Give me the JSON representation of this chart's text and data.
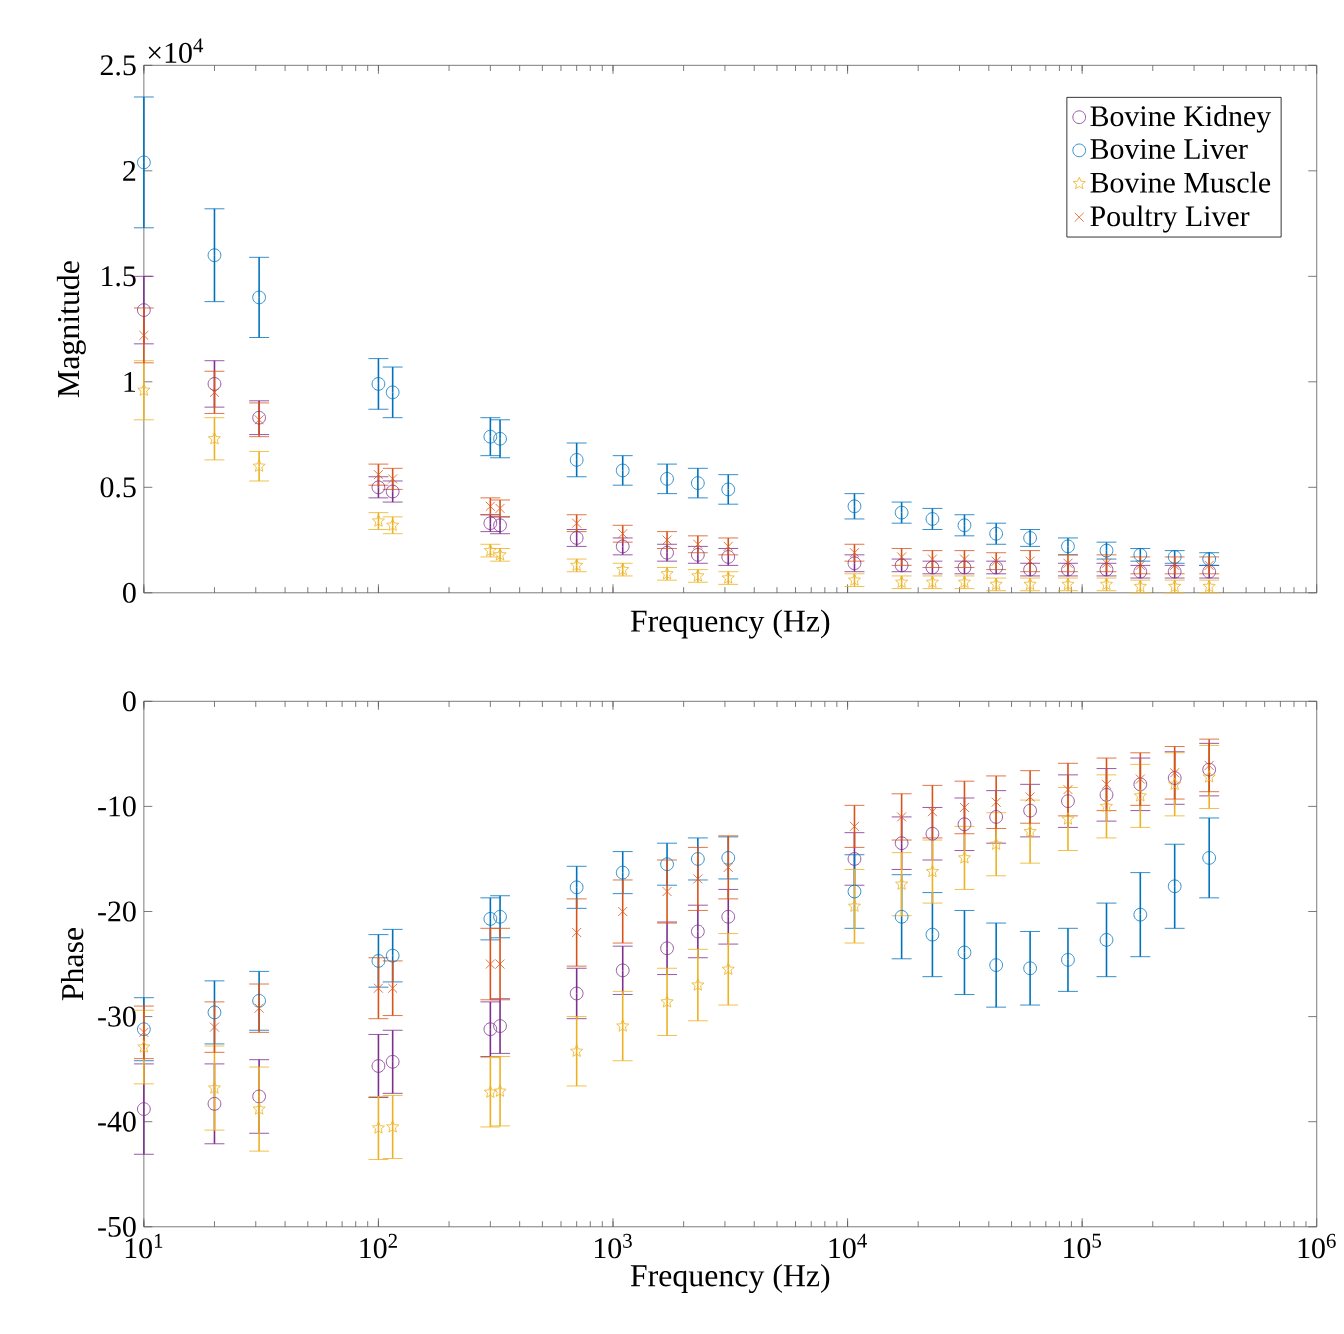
{
  "chart_data": [
    {
      "type": "scatter",
      "xlabel": "Frequency (Hz)",
      "ylabel": "Magnitude",
      "log": "x",
      "legend": "top right",
      "tick_labels": "y",
      "annotations": [
        "×10$^{4}$"
      ],
      "xlim": [
        10,
        1000000
      ],
      "xticks": [
        10,
        100,
        1000,
        10000,
        100000,
        1000000
      ],
      "ylim": [
        0,
        2.5
      ],
      "yticks": [
        0,
        0.5,
        1,
        1.5,
        2,
        2.5
      ],
      "x": [
        10,
        20,
        31,
        100,
        115,
        300,
        330,
        700,
        1100,
        1700,
        2300,
        3100,
        10700,
        17000,
        23000,
        31500,
        43000,
        60000,
        87000,
        127000,
        177000,
        248000,
        348000
      ],
      "series": [
        {
          "name": "Bovine Kidney",
          "color": "#7e2f8e",
          "marker": "circle",
          "values": [
            1.34,
            0.99,
            0.83,
            0.5,
            0.48,
            0.33,
            0.32,
            0.26,
            0.22,
            0.19,
            0.18,
            0.17,
            0.14,
            0.13,
            0.12,
            0.12,
            0.12,
            0.11,
            0.11,
            0.11,
            0.1,
            0.1,
            0.1
          ],
          "errors": [
            0.16,
            0.11,
            0.08,
            0.05,
            0.05,
            0.04,
            0.04,
            0.04,
            0.04,
            0.04,
            0.04,
            0.04,
            0.04,
            0.03,
            0.03,
            0.03,
            0.03,
            0.03,
            0.03,
            0.03,
            0.03,
            0.03,
            0.03
          ]
        },
        {
          "name": "Bovine Liver",
          "color": "#0072bd",
          "marker": "circle",
          "values": [
            2.04,
            1.6,
            1.4,
            0.99,
            0.95,
            0.74,
            0.73,
            0.63,
            0.58,
            0.54,
            0.52,
            0.49,
            0.41,
            0.38,
            0.35,
            0.32,
            0.28,
            0.26,
            0.22,
            0.2,
            0.18,
            0.17,
            0.16
          ],
          "errors": [
            0.31,
            0.22,
            0.19,
            0.12,
            0.12,
            0.09,
            0.09,
            0.08,
            0.07,
            0.07,
            0.07,
            0.07,
            0.06,
            0.05,
            0.05,
            0.05,
            0.05,
            0.04,
            0.04,
            0.04,
            0.03,
            0.03,
            0.03
          ]
        },
        {
          "name": "Bovine Muscle",
          "color": "#edb120",
          "marker": "star",
          "values": [
            0.96,
            0.73,
            0.6,
            0.34,
            0.32,
            0.2,
            0.18,
            0.13,
            0.11,
            0.09,
            0.08,
            0.07,
            0.06,
            0.05,
            0.05,
            0.05,
            0.04,
            0.04,
            0.04,
            0.04,
            0.03,
            0.03,
            0.03
          ],
          "errors": [
            0.14,
            0.1,
            0.07,
            0.04,
            0.04,
            0.03,
            0.03,
            0.03,
            0.03,
            0.03,
            0.03,
            0.03,
            0.03,
            0.03,
            0.03,
            0.03,
            0.03,
            0.03,
            0.03,
            0.03,
            0.03,
            0.03,
            0.03
          ]
        },
        {
          "name": "Poultry Liver",
          "color": "#d95319",
          "marker": "cross",
          "values": [
            1.22,
            0.95,
            0.82,
            0.56,
            0.54,
            0.41,
            0.4,
            0.33,
            0.28,
            0.25,
            0.23,
            0.22,
            0.19,
            0.17,
            0.16,
            0.16,
            0.15,
            0.15,
            0.14,
            0.14,
            0.13,
            0.13,
            0.13
          ],
          "errors": [
            0.13,
            0.1,
            0.08,
            0.05,
            0.05,
            0.04,
            0.04,
            0.04,
            0.04,
            0.04,
            0.04,
            0.04,
            0.04,
            0.04,
            0.04,
            0.04,
            0.04,
            0.05,
            0.04,
            0.04,
            0.04,
            0.04,
            0.04
          ]
        }
      ]
    },
    {
      "type": "scatter",
      "xlabel": "Frequency (Hz)",
      "ylabel": "Phase",
      "log": "x",
      "xlim": [
        10,
        1000000
      ],
      "xticks": [
        {
          "value": 10,
          "label": "10$^{1}$"
        },
        {
          "value": 100,
          "label": "10$^{2}$"
        },
        {
          "value": 1000,
          "label": "10$^{3}$"
        },
        {
          "value": 10000,
          "label": "10$^{4}$"
        },
        {
          "value": 100000,
          "label": "10$^{5}$"
        },
        {
          "value": 1000000,
          "label": "10$^{6}$"
        }
      ],
      "ylim": [
        -50,
        0
      ],
      "yticks": [
        -50,
        -40,
        -30,
        -20,
        -10,
        0
      ],
      "x": [
        10,
        20,
        31,
        100,
        115,
        300,
        330,
        700,
        1100,
        1700,
        2300,
        3100,
        10700,
        17000,
        23000,
        31500,
        43000,
        60000,
        87000,
        127000,
        177000,
        248000,
        348000
      ],
      "series": [
        {
          "color": "#7e2f8e",
          "marker": "circle",
          "values": [
            -38.8,
            -38.3,
            -37.6,
            -34.7,
            -34.3,
            -31.2,
            -30.9,
            -27.8,
            -25.6,
            -23.5,
            -21.9,
            -20.5,
            -15.0,
            -13.5,
            -12.6,
            -11.7,
            -11.0,
            -10.4,
            -9.5,
            -8.9,
            -7.9,
            -7.3,
            -6.5
          ],
          "errors": [
            4.3,
            3.8,
            3.5,
            3,
            3,
            2.6,
            2.6,
            2.4,
            2.3,
            2.5,
            2.5,
            2.6,
            2.5,
            2.5,
            2.5,
            2.5,
            2.5,
            2.5,
            2.5,
            2.5,
            2.5,
            2.5,
            2.5
          ]
        },
        {
          "color": "#0072bd",
          "marker": "circle",
          "values": [
            -31.2,
            -29.6,
            -28.5,
            -24.7,
            -24.2,
            -20.7,
            -20.5,
            -17.7,
            -16.3,
            -15.5,
            -15.0,
            -14.9,
            -18.1,
            -20.5,
            -22.2,
            -23.9,
            -25.1,
            -25.4,
            -24.6,
            -22.7,
            -20.3,
            -17.6,
            -14.9
          ],
          "errors": [
            3,
            3,
            2.8,
            2.5,
            2.5,
            2,
            2,
            2,
            2,
            2,
            2,
            2,
            3.5,
            4,
            4,
            4,
            4,
            3.5,
            3,
            3.5,
            4,
            4,
            3.8
          ]
        },
        {
          "color": "#edb120",
          "marker": "star",
          "values": [
            -32.9,
            -36.8,
            -38.8,
            -40.6,
            -40.5,
            -37.2,
            -37.1,
            -33.3,
            -30.9,
            -28.6,
            -27.0,
            -25.5,
            -19.5,
            -17.4,
            -16.2,
            -14.9,
            -13.6,
            -12.4,
            -11.2,
            -10.0,
            -9.0,
            -7.9,
            -7.2
          ],
          "errors": [
            3.5,
            4,
            4,
            3,
            3,
            3.3,
            3.3,
            3.3,
            3.3,
            3.2,
            3.4,
            3.4,
            3.5,
            3,
            3,
            3,
            3,
            3,
            3,
            3,
            3,
            3,
            3
          ]
        },
        {
          "color": "#d95319",
          "marker": "cross",
          "values": [
            -31.5,
            -31,
            -29.2,
            -27.3,
            -27.3,
            -25,
            -25,
            -22,
            -20,
            -18.1,
            -16.9,
            -15.8,
            -11.9,
            -11,
            -10.5,
            -10.1,
            -9.6,
            -9.1,
            -8.4,
            -7.9,
            -7.4,
            -6.8,
            -6.1
          ],
          "errors": [
            2.5,
            2.4,
            2.3,
            2.9,
            2.6,
            3.4,
            3.4,
            3.2,
            3,
            3,
            3,
            3,
            2,
            2.2,
            2.5,
            2.5,
            2.5,
            2.5,
            2.5,
            2.5,
            2.5,
            2.5,
            2.5
          ]
        }
      ]
    }
  ]
}
